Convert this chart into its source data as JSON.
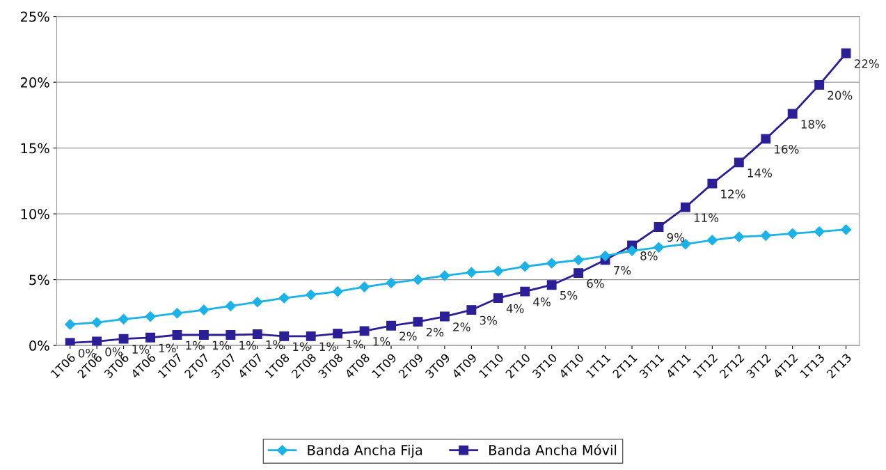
{
  "chart_data": {
    "type": "line",
    "categories": [
      "1T06",
      "2T06",
      "3T06",
      "4T06",
      "1T07",
      "2T07",
      "3T07",
      "4T07",
      "1T08",
      "2T08",
      "3T08",
      "4T08",
      "1T09",
      "2T09",
      "3T09",
      "4T09",
      "1T10",
      "2T10",
      "3T10",
      "4T10",
      "1T11",
      "2T11",
      "3T11",
      "4T11",
      "1T12",
      "2T12",
      "3T12",
      "4T12",
      "1T13",
      "2T13"
    ],
    "series": [
      {
        "name": "Banda Ancha Fija",
        "color": "#1ab2e8",
        "marker": "diamond",
        "values": [
          1.6,
          1.75,
          2.0,
          2.2,
          2.45,
          2.7,
          3.0,
          3.3,
          3.6,
          3.85,
          4.1,
          4.45,
          4.75,
          5.0,
          5.3,
          5.55,
          5.65,
          6.0,
          6.25,
          6.5,
          6.8,
          7.2,
          7.45,
          7.7,
          8.0,
          8.25,
          8.35,
          8.5,
          8.65,
          8.8
        ]
      },
      {
        "name": "Banda Ancha Móvil",
        "color": "#2a1f96",
        "marker": "square",
        "values": [
          0.2,
          0.3,
          0.5,
          0.6,
          0.8,
          0.8,
          0.8,
          0.85,
          0.7,
          0.7,
          0.9,
          1.1,
          1.5,
          1.8,
          2.2,
          2.7,
          3.6,
          4.1,
          4.6,
          5.5,
          6.5,
          7.6,
          9.0,
          10.5,
          12.3,
          13.9,
          15.7,
          17.6,
          19.8,
          22.2
        ],
        "value_labels": [
          "0%",
          "0%",
          "1%",
          "1%",
          "1%",
          "1%",
          "1%",
          "1%",
          "1%",
          "1%",
          "1%",
          "1%",
          "2%",
          "2%",
          "2%",
          "3%",
          "4%",
          "4%",
          "5%",
          "6%",
          "7%",
          "8%",
          "9%",
          "11%",
          "12%",
          "14%",
          "16%",
          "18%",
          "20%",
          "22%"
        ]
      }
    ],
    "ylim": [
      0,
      25
    ],
    "yticks": [
      {
        "value": 0,
        "label": "0%"
      },
      {
        "value": 5,
        "label": "5%"
      },
      {
        "value": 10,
        "label": "10%"
      },
      {
        "value": 15,
        "label": "15%"
      },
      {
        "value": 20,
        "label": "20%"
      },
      {
        "value": 25,
        "label": "25%"
      }
    ],
    "grid": "y",
    "legend": "bottom",
    "line_style": "solid"
  }
}
